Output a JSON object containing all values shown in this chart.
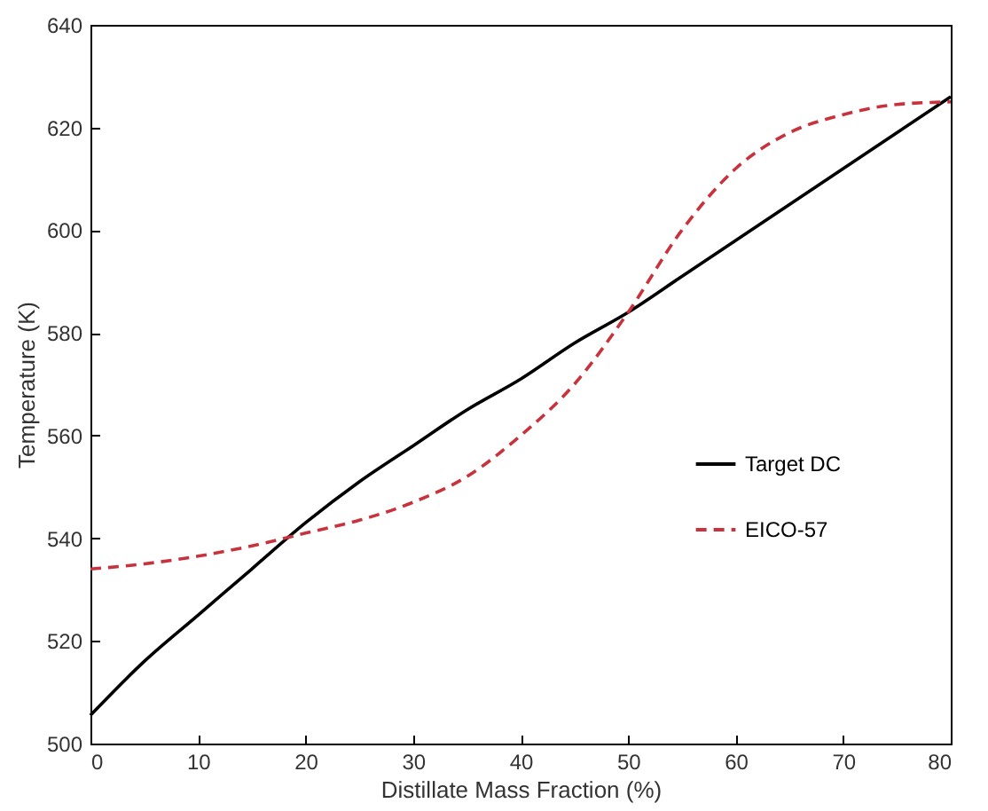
{
  "chart_data": {
    "type": "line",
    "xlabel": "Distillate Mass Fraction (%)",
    "ylabel": "Temperature (K)",
    "xlim": [
      0,
      80
    ],
    "xticks": [
      0,
      10,
      20,
      30,
      40,
      50,
      60,
      70,
      80
    ],
    "ylim": [
      500,
      640
    ],
    "yticks": [
      500,
      520,
      540,
      560,
      580,
      600,
      620,
      640
    ],
    "grid": false,
    "legend": "right",
    "series": [
      {
        "name": "Target DC",
        "color": "#000000",
        "line_style": "solid",
        "x": [
          0,
          5,
          10,
          15,
          20,
          25,
          30,
          35,
          40,
          45,
          50,
          55,
          60,
          65,
          70,
          75,
          80
        ],
        "values": [
          505.5,
          516,
          525,
          534,
          543,
          551,
          558,
          565,
          571,
          578,
          584,
          591,
          598,
          605,
          612,
          619,
          626
        ]
      },
      {
        "name": "EICO-57",
        "color": "#c8323c",
        "line_style": "dashed",
        "x": [
          0,
          5,
          10,
          15,
          20,
          25,
          30,
          35,
          40,
          45,
          50,
          55,
          60,
          65,
          70,
          75,
          80
        ],
        "values": [
          534,
          535,
          536.5,
          538.5,
          541,
          543.5,
          547,
          552,
          560,
          570,
          584,
          600,
          612,
          619,
          622.5,
          624.5,
          625
        ]
      }
    ]
  }
}
